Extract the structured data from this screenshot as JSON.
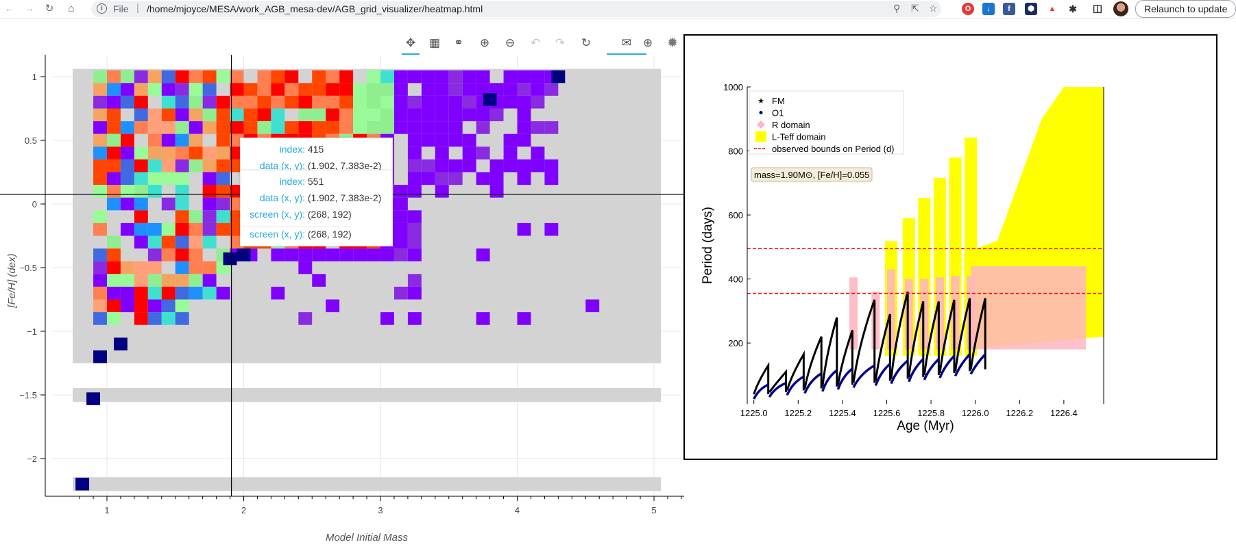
{
  "browser": {
    "file_label": "File",
    "url": "/home/mjoyce/MESA/work_AGB_mesa-dev/AGB_grid_visualizer/heatmap.html",
    "relaunch_label": "Relaunch to update"
  },
  "toolbar": {
    "tools": [
      "pan-icon",
      "box-zoom-icon",
      "wheel-zoom-icon",
      "zoom-in-icon",
      "zoom-out-icon",
      "undo-icon",
      "redo-icon",
      "reset-icon",
      "hover-icon",
      "crosshair-icon",
      "bokeh-logo-icon"
    ]
  },
  "heatmap": {
    "xlabel": "Model Initial Mass",
    "ylabel": "[Fe/H] (dex)",
    "xticks": [
      "1",
      "2",
      "3",
      "4",
      "5"
    ],
    "yticks": [
      "1",
      "0.5",
      "0",
      "−0.5",
      "−1",
      "−1.5",
      "−2"
    ],
    "crosshair": {
      "x": 1.91,
      "y": 0.075
    }
  },
  "tooltips": [
    {
      "index_label": "index:",
      "index": "415",
      "data_label": "data (x, y):",
      "data": "(1.902, 7.383e-2)"
    },
    {
      "index_label": "index:",
      "index": "551",
      "data_label": "data (x, y):",
      "data": "(1.902, 7.383e-2)",
      "screen_label": "screen (x, y):",
      "screen": "(268, 192)",
      "screen_label2": "screen (x, y):",
      "screen2": "(268, 192)"
    }
  ],
  "chart_data": {
    "type": "scatter",
    "xlabel": "Age (Myr)",
    "ylabel": "Period (days)",
    "xlim": [
      1224.97,
      1226.58
    ],
    "ylim": [
      10,
      1000
    ],
    "xticks": [
      "1225.0",
      "1225.2",
      "1225.4",
      "1225.6",
      "1225.8",
      "1226.0",
      "1226.2",
      "1226.4"
    ],
    "yticks": [
      "200",
      "400",
      "600",
      "800",
      "1000"
    ],
    "legend": [
      "FM",
      "O1",
      "R domain",
      "L-Teff domain",
      "observed bounds on Period (d)"
    ],
    "legend_placement": "top-left",
    "annotation": "mass=1.90M⊙, [Fe/H]=0.055",
    "observed_bounds": [
      355,
      495
    ],
    "pulses": [
      {
        "age": 1225.0,
        "fm_peak": 130,
        "o1_peak": 70
      },
      {
        "age": 1225.07,
        "fm_peak": 110,
        "o1_peak": 75
      },
      {
        "age": 1225.15,
        "fm_peak": 165,
        "o1_peak": 95
      },
      {
        "age": 1225.23,
        "fm_peak": 220,
        "o1_peak": 105
      },
      {
        "age": 1225.31,
        "fm_peak": 280,
        "o1_peak": 115
      },
      {
        "age": 1225.38,
        "fm_peak": 240,
        "o1_peak": 120
      },
      {
        "age": 1225.45,
        "fm_peak": 335,
        "o1_peak": 130
      },
      {
        "age": 1225.55,
        "fm_peak": 290,
        "o1_peak": 135
      },
      {
        "age": 1225.62,
        "fm_peak": 360,
        "o1_peak": 145
      },
      {
        "age": 1225.7,
        "fm_peak": 330,
        "o1_peak": 150
      },
      {
        "age": 1225.77,
        "fm_peak": 330,
        "o1_peak": 150
      },
      {
        "age": 1225.84,
        "fm_peak": 335,
        "o1_peak": 160
      },
      {
        "age": 1225.91,
        "fm_peak": 340,
        "o1_peak": 165
      },
      {
        "age": 1225.98,
        "fm_peak": 340,
        "o1_peak": 165
      }
    ],
    "colors": {
      "fm": "#000000",
      "o1": "#00008b",
      "r": "#ffb6c1",
      "l": "#ffff00",
      "bounds": "#ff0000"
    }
  }
}
